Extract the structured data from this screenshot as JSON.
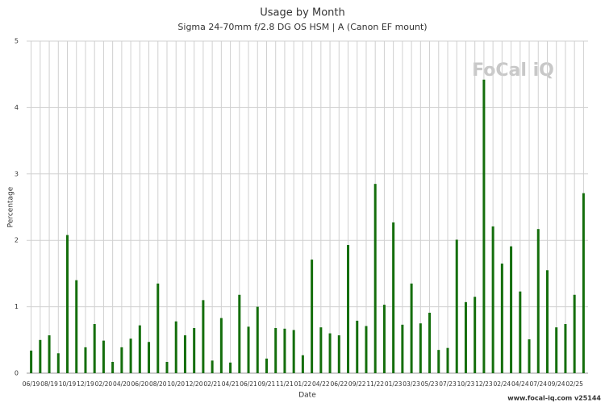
{
  "chart_data": {
    "type": "bar",
    "title": "Usage by Month",
    "subtitle": "Sigma 24-70mm f/2.8 DG OS HSM | A (Canon EF mount)",
    "x_label": "Date",
    "y_label": "Percentage",
    "watermark": "FoCal iQ",
    "footer": "www.focal-iq.com  v25144",
    "color": "#146e0c",
    "grid": true,
    "ylim": [
      0,
      5
    ],
    "yticks": [
      0,
      1,
      2,
      3,
      4,
      5
    ],
    "categories": [
      "06/19",
      null,
      "08/19",
      null,
      "10/19",
      null,
      "12/19",
      null,
      "02/20",
      null,
      "04/20",
      null,
      "06/20",
      null,
      "08/20",
      null,
      "10/20",
      null,
      "12/20",
      null,
      "02/21",
      null,
      "04/21",
      null,
      "06/21",
      null,
      "09/21",
      null,
      "11/21",
      null,
      "01/22",
      null,
      "04/22",
      null,
      "06/22",
      null,
      "09/22",
      null,
      "11/22",
      null,
      "01/23",
      null,
      "03/23",
      null,
      "05/23",
      null,
      "07/23",
      null,
      "10/23",
      null,
      "12/23",
      null,
      "02/24",
      null,
      "04/24",
      null,
      "07/24",
      null,
      "09/24",
      null,
      "02/25",
      null
    ],
    "values": [
      0.34,
      0.5,
      0.57,
      0.3,
      2.08,
      1.4,
      0.39,
      0.74,
      0.49,
      0.17,
      0.39,
      0.52,
      0.72,
      0.47,
      1.35,
      0.17,
      0.78,
      0.57,
      0.68,
      1.1,
      0.19,
      0.83,
      0.16,
      1.18,
      0.7,
      1.0,
      0.22,
      0.68,
      0.67,
      0.65,
      0.27,
      1.71,
      0.69,
      0.6,
      0.57,
      1.93,
      0.79,
      0.71,
      2.85,
      1.03,
      2.27,
      0.73,
      1.35,
      0.75,
      0.91,
      0.35,
      0.38,
      2.01,
      1.07,
      1.15,
      4.42,
      2.21,
      1.65,
      1.91,
      1.23,
      0.51,
      2.17,
      1.55,
      0.69,
      0.74,
      1.18,
      2.71
    ]
  }
}
